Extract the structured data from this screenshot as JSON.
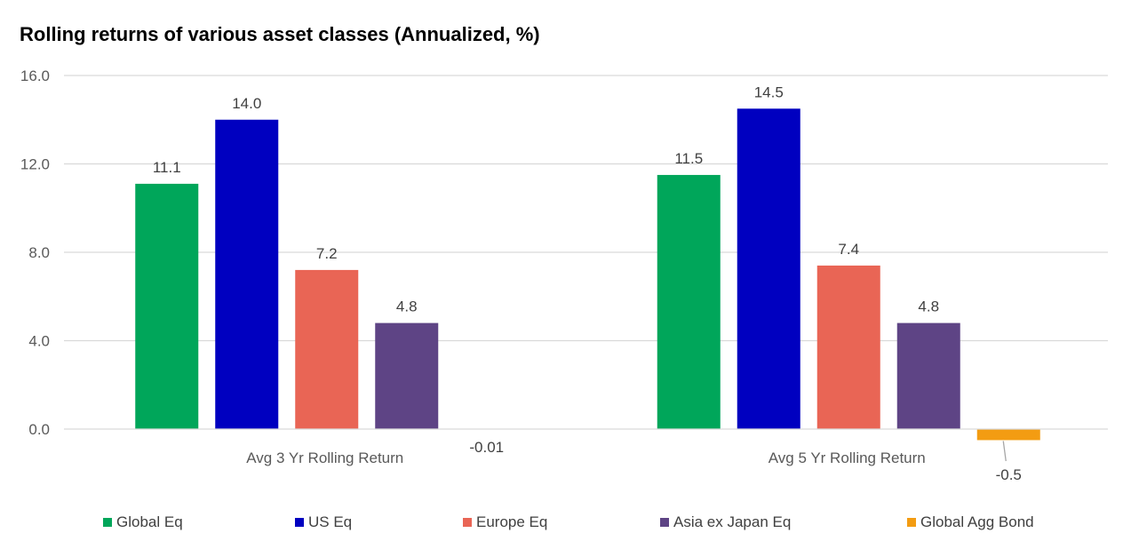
{
  "chart_data": {
    "type": "bar",
    "title": "Rolling returns of various asset classes (Annualized, %)",
    "categories": [
      "Avg 3 Yr Rolling Return",
      "Avg 5 Yr Rolling Return"
    ],
    "series": [
      {
        "name": "Global Eq",
        "color": "#00A65A",
        "values": [
          11.1,
          11.5
        ],
        "labels": [
          "11.1",
          "11.5"
        ]
      },
      {
        "name": "US Eq",
        "color": "#0000C0",
        "values": [
          14.0,
          14.5
        ],
        "labels": [
          "14.0",
          "14.5"
        ]
      },
      {
        "name": "Europe Eq",
        "color": "#E96555",
        "values": [
          7.2,
          7.4
        ],
        "labels": [
          "7.2",
          "7.4"
        ]
      },
      {
        "name": "Asia ex Japan Eq",
        "color": "#5E4485",
        "values": [
          4.8,
          4.8
        ],
        "labels": [
          "4.8",
          "4.8"
        ]
      },
      {
        "name": "Global Agg Bond",
        "color": "#F39C12",
        "values": [
          -0.01,
          -0.5
        ],
        "labels": [
          "-0.01",
          "-0.5"
        ]
      }
    ],
    "ylim": [
      0,
      16
    ],
    "yticks": [
      "0.0",
      "4.0",
      "8.0",
      "12.0",
      "16.0"
    ],
    "ytick_values": [
      0,
      4,
      8,
      12,
      16
    ],
    "grid": true,
    "legend_position": "bottom"
  }
}
